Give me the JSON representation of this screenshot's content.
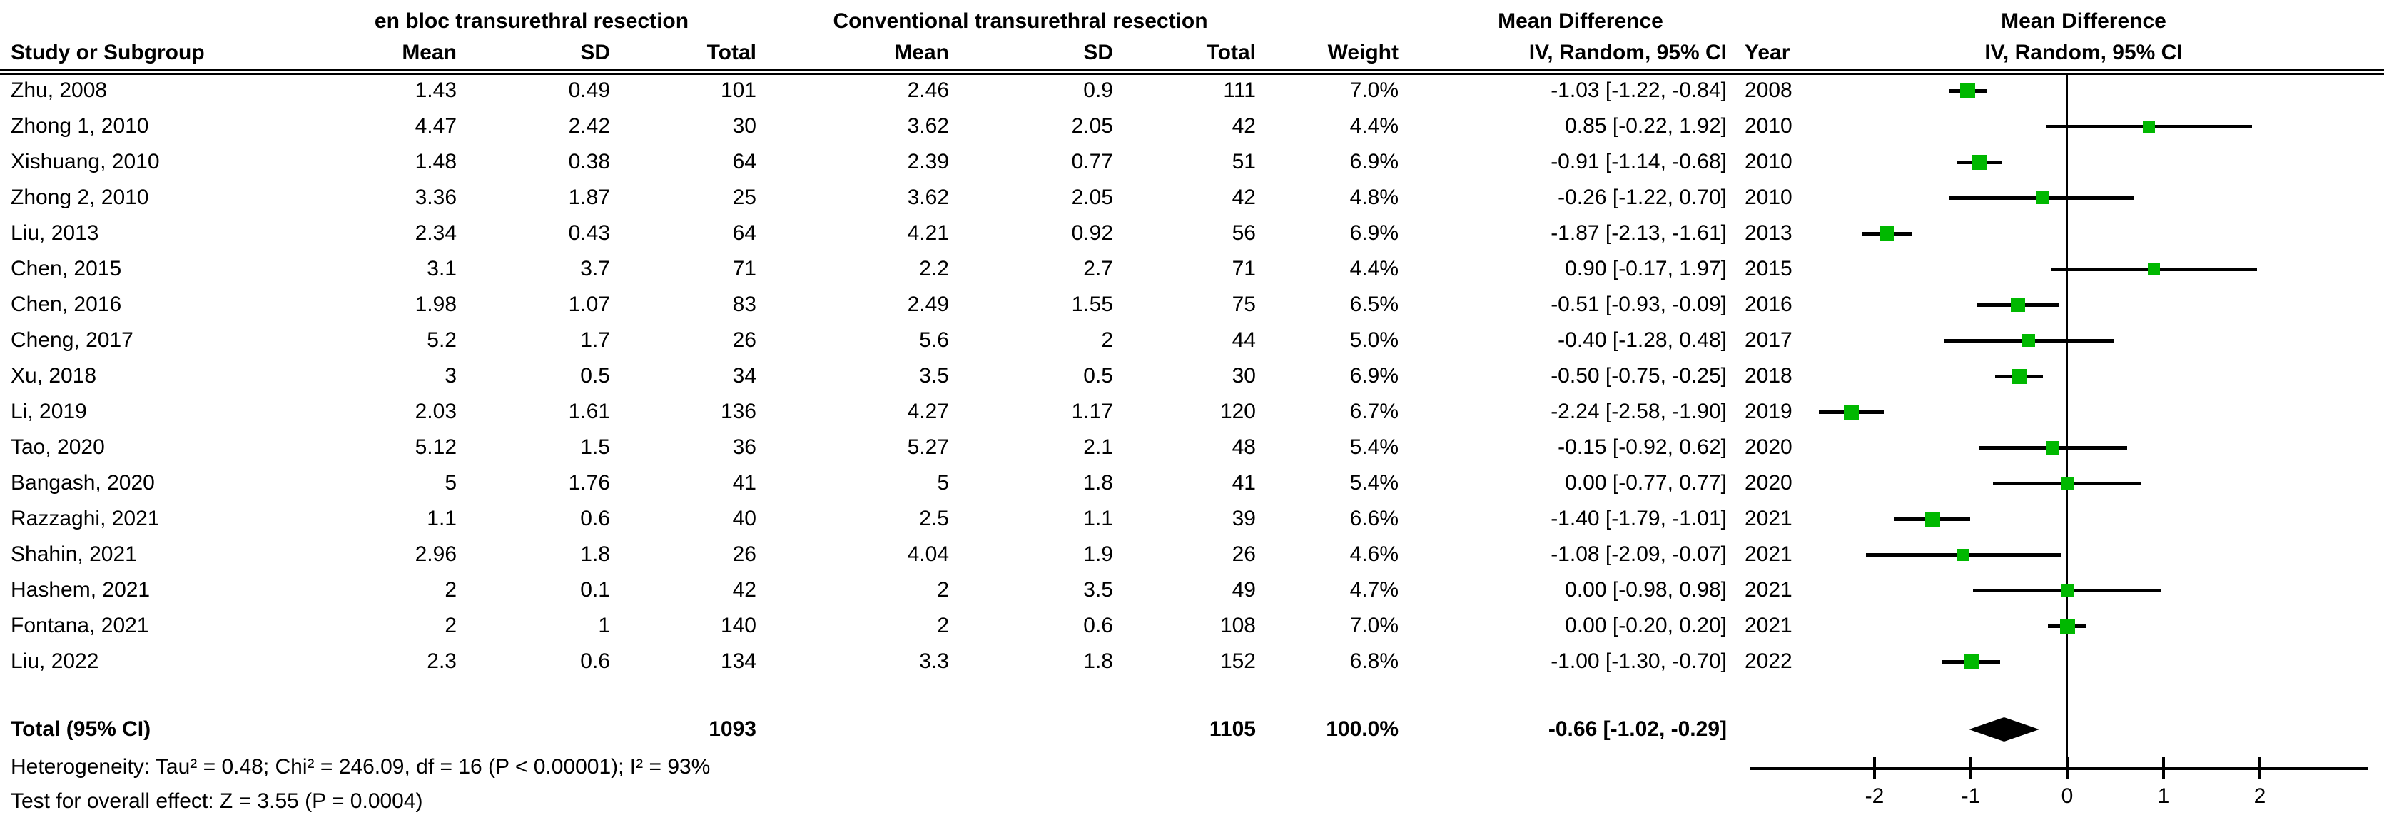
{
  "header": {
    "group_en_bloc": "en bloc transurethral resection",
    "group_conventional": "Conventional transurethral resection",
    "group_md_text": "Mean Difference",
    "group_md_plot": "Mean Difference",
    "col_study": "Study or Subgroup",
    "col_mean": "Mean",
    "col_sd": "SD",
    "col_total": "Total",
    "col_weight": "Weight",
    "col_ci": "IV, Random, 95% CI",
    "col_year": "Year",
    "col_ci_plot": "IV, Random, 95% CI"
  },
  "totals": {
    "label": "Total (95% CI)",
    "total1": "1093",
    "total2": "1105",
    "weight": "100.0%",
    "ci_text": "-0.66 [-1.02, -0.29]"
  },
  "footer": {
    "heterogeneity": "Heterogeneity: Tau² = 0.48; Chi² = 246.09, df = 16 (P < 0.00001); I² = 93%",
    "overall_test": "Test for overall effect: Z = 3.55 (P = 0.0004)"
  },
  "chart_data": {
    "type": "forest",
    "title": "Mean Difference IV, Random, 95% CI",
    "effect_measure": "Mean Difference",
    "model": "IV, Random, 95% CI",
    "marker_color": "#00b800",
    "line_color": "#000000",
    "axis": {
      "ticks": [
        -2,
        -1,
        0,
        1,
        2
      ],
      "xlim": [
        -3.3,
        3.1
      ],
      "zero_line": 0
    },
    "studies": [
      {
        "label": "Zhu, 2008",
        "mean1": "1.43",
        "sd1": "0.49",
        "total1": "101",
        "mean2": "2.46",
        "sd2": "0.9",
        "total2": "111",
        "weight": "7.0%",
        "ci_text": "-1.03 [-1.22, -0.84]",
        "year": "2008",
        "md": -1.03,
        "lo": -1.22,
        "hi": -0.84
      },
      {
        "label": "Zhong 1, 2010",
        "mean1": "4.47",
        "sd1": "2.42",
        "total1": "30",
        "mean2": "3.62",
        "sd2": "2.05",
        "total2": "42",
        "weight": "4.4%",
        "ci_text": "0.85 [-0.22, 1.92]",
        "year": "2010",
        "md": 0.85,
        "lo": -0.22,
        "hi": 1.92
      },
      {
        "label": "Xishuang, 2010",
        "mean1": "1.48",
        "sd1": "0.38",
        "total1": "64",
        "mean2": "2.39",
        "sd2": "0.77",
        "total2": "51",
        "weight": "6.9%",
        "ci_text": "-0.91 [-1.14, -0.68]",
        "year": "2010",
        "md": -0.91,
        "lo": -1.14,
        "hi": -0.68
      },
      {
        "label": "Zhong 2, 2010",
        "mean1": "3.36",
        "sd1": "1.87",
        "total1": "25",
        "mean2": "3.62",
        "sd2": "2.05",
        "total2": "42",
        "weight": "4.8%",
        "ci_text": "-0.26 [-1.22, 0.70]",
        "year": "2010",
        "md": -0.26,
        "lo": -1.22,
        "hi": 0.7
      },
      {
        "label": "Liu, 2013",
        "mean1": "2.34",
        "sd1": "0.43",
        "total1": "64",
        "mean2": "4.21",
        "sd2": "0.92",
        "total2": "56",
        "weight": "6.9%",
        "ci_text": "-1.87 [-2.13, -1.61]",
        "year": "2013",
        "md": -1.87,
        "lo": -2.13,
        "hi": -1.61
      },
      {
        "label": "Chen, 2015",
        "mean1": "3.1",
        "sd1": "3.7",
        "total1": "71",
        "mean2": "2.2",
        "sd2": "2.7",
        "total2": "71",
        "weight": "4.4%",
        "ci_text": "0.90 [-0.17, 1.97]",
        "year": "2015",
        "md": 0.9,
        "lo": -0.17,
        "hi": 1.97
      },
      {
        "label": "Chen, 2016",
        "mean1": "1.98",
        "sd1": "1.07",
        "total1": "83",
        "mean2": "2.49",
        "sd2": "1.55",
        "total2": "75",
        "weight": "6.5%",
        "ci_text": "-0.51 [-0.93, -0.09]",
        "year": "2016",
        "md": -0.51,
        "lo": -0.93,
        "hi": -0.09
      },
      {
        "label": "Cheng, 2017",
        "mean1": "5.2",
        "sd1": "1.7",
        "total1": "26",
        "mean2": "5.6",
        "sd2": "2",
        "total2": "44",
        "weight": "5.0%",
        "ci_text": "-0.40 [-1.28, 0.48]",
        "year": "2017",
        "md": -0.4,
        "lo": -1.28,
        "hi": 0.48
      },
      {
        "label": "Xu, 2018",
        "mean1": "3",
        "sd1": "0.5",
        "total1": "34",
        "mean2": "3.5",
        "sd2": "0.5",
        "total2": "30",
        "weight": "6.9%",
        "ci_text": "-0.50 [-0.75, -0.25]",
        "year": "2018",
        "md": -0.5,
        "lo": -0.75,
        "hi": -0.25
      },
      {
        "label": "Li, 2019",
        "mean1": "2.03",
        "sd1": "1.61",
        "total1": "136",
        "mean2": "4.27",
        "sd2": "1.17",
        "total2": "120",
        "weight": "6.7%",
        "ci_text": "-2.24 [-2.58, -1.90]",
        "year": "2019",
        "md": -2.24,
        "lo": -2.58,
        "hi": -1.9
      },
      {
        "label": "Tao, 2020",
        "mean1": "5.12",
        "sd1": "1.5",
        "total1": "36",
        "mean2": "5.27",
        "sd2": "2.1",
        "total2": "48",
        "weight": "5.4%",
        "ci_text": "-0.15 [-0.92, 0.62]",
        "year": "2020",
        "md": -0.15,
        "lo": -0.92,
        "hi": 0.62
      },
      {
        "label": "Bangash, 2020",
        "mean1": "5",
        "sd1": "1.76",
        "total1": "41",
        "mean2": "5",
        "sd2": "1.8",
        "total2": "41",
        "weight": "5.4%",
        "ci_text": "0.00 [-0.77, 0.77]",
        "year": "2020",
        "md": 0.0,
        "lo": -0.77,
        "hi": 0.77
      },
      {
        "label": "Razzaghi, 2021",
        "mean1": "1.1",
        "sd1": "0.6",
        "total1": "40",
        "mean2": "2.5",
        "sd2": "1.1",
        "total2": "39",
        "weight": "6.6%",
        "ci_text": "-1.40 [-1.79, -1.01]",
        "year": "2021",
        "md": -1.4,
        "lo": -1.79,
        "hi": -1.01
      },
      {
        "label": "Shahin, 2021",
        "mean1": "2.96",
        "sd1": "1.8",
        "total1": "26",
        "mean2": "4.04",
        "sd2": "1.9",
        "total2": "26",
        "weight": "4.6%",
        "ci_text": "-1.08 [-2.09, -0.07]",
        "year": "2021",
        "md": -1.08,
        "lo": -2.09,
        "hi": -0.07
      },
      {
        "label": "Hashem, 2021",
        "mean1": "2",
        "sd1": "0.1",
        "total1": "42",
        "mean2": "2",
        "sd2": "3.5",
        "total2": "49",
        "weight": "4.7%",
        "ci_text": "0.00 [-0.98, 0.98]",
        "year": "2021",
        "md": 0.0,
        "lo": -0.98,
        "hi": 0.98
      },
      {
        "label": "Fontana, 2021",
        "mean1": "2",
        "sd1": "1",
        "total1": "140",
        "mean2": "2",
        "sd2": "0.6",
        "total2": "108",
        "weight": "7.0%",
        "ci_text": "0.00 [-0.20, 0.20]",
        "year": "2021",
        "md": 0.0,
        "lo": -0.2,
        "hi": 0.2
      },
      {
        "label": "Liu, 2022",
        "mean1": "2.3",
        "sd1": "0.6",
        "total1": "134",
        "mean2": "3.3",
        "sd2": "1.8",
        "total2": "152",
        "weight": "6.8%",
        "ci_text": "-1.00 [-1.30, -0.70]",
        "year": "2022",
        "md": -1.0,
        "lo": -1.3,
        "hi": -0.7
      }
    ],
    "total": {
      "md": -0.66,
      "lo": -1.02,
      "hi": -0.29
    }
  }
}
